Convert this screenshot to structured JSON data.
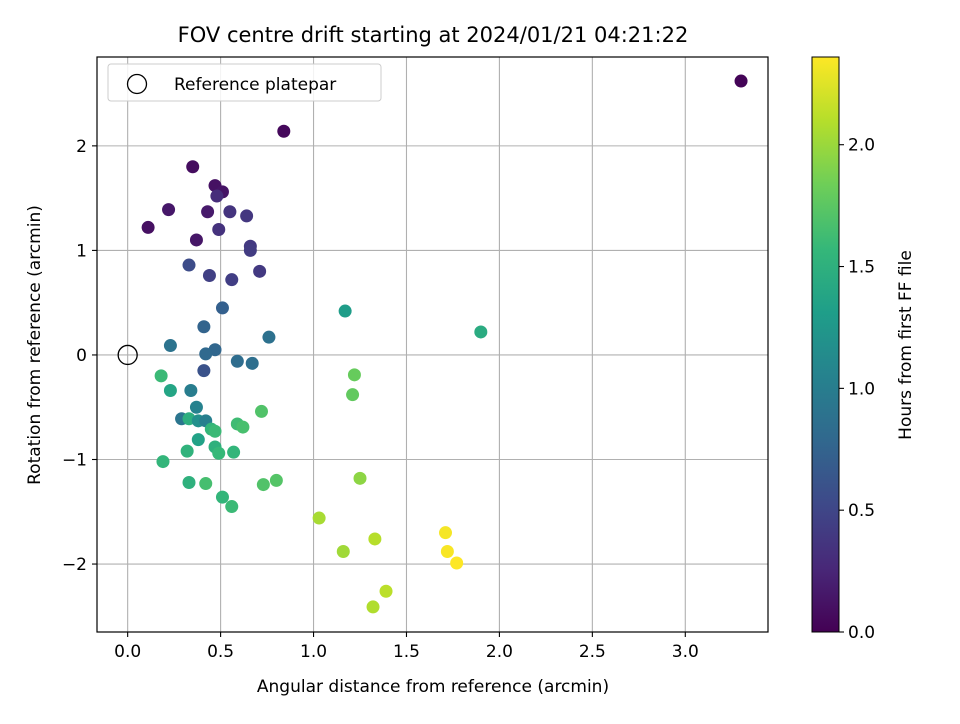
{
  "chart_data": {
    "type": "scatter",
    "title": "FOV centre drift starting at 2024/01/21 04:21:22",
    "xlabel": "Angular distance from reference (arcmin)",
    "ylabel": "Rotation from reference (arcmin)",
    "xlim": [
      -0.165,
      3.445
    ],
    "ylim": [
      -2.65,
      2.85
    ],
    "x_ticks": [
      0.0,
      0.5,
      1.0,
      1.5,
      2.0,
      2.5,
      3.0
    ],
    "x_tick_labels": [
      "0.0",
      "0.5",
      "1.0",
      "1.5",
      "2.0",
      "2.5",
      "3.0"
    ],
    "y_ticks": [
      -2,
      -1,
      0,
      1,
      2
    ],
    "y_tick_labels": [
      "−2",
      "−1",
      "0",
      "1",
      "2"
    ],
    "grid": true,
    "legend": {
      "placement": "top-left",
      "entries": [
        {
          "label": "Reference platepar",
          "marker": "open-circle"
        }
      ]
    },
    "reference_point": {
      "x": 0.0,
      "y": 0.0
    },
    "colorbar": {
      "label": "Hours from first FF file",
      "colormap": "viridis",
      "range": [
        0.0,
        2.36
      ],
      "ticks": [
        0.0,
        0.5,
        1.0,
        1.5,
        2.0
      ],
      "tick_labels": [
        "0.0",
        "0.5",
        "1.0",
        "1.5",
        "2.0"
      ],
      "colormap_stops": [
        "#440154",
        "#482878",
        "#3e4989",
        "#31688e",
        "#26828e",
        "#1f9e89",
        "#35b779",
        "#6ece58",
        "#b5de2b",
        "#fde725"
      ]
    },
    "points": [
      {
        "x": 3.3,
        "y": 2.62,
        "c": 0.02
      },
      {
        "x": 0.84,
        "y": 2.14,
        "c": 0.05
      },
      {
        "x": 0.35,
        "y": 1.8,
        "c": 0.08
      },
      {
        "x": 0.47,
        "y": 1.62,
        "c": 0.11
      },
      {
        "x": 0.51,
        "y": 1.56,
        "c": 0.13
      },
      {
        "x": 0.22,
        "y": 1.39,
        "c": 0.15
      },
      {
        "x": 0.43,
        "y": 1.37,
        "c": 0.17
      },
      {
        "x": 0.11,
        "y": 1.22,
        "c": 0.1
      },
      {
        "x": 0.37,
        "y": 1.1,
        "c": 0.14
      },
      {
        "x": 0.48,
        "y": 1.52,
        "c": 0.3
      },
      {
        "x": 0.55,
        "y": 1.37,
        "c": 0.36
      },
      {
        "x": 0.64,
        "y": 1.33,
        "c": 0.38
      },
      {
        "x": 0.49,
        "y": 1.2,
        "c": 0.34
      },
      {
        "x": 0.66,
        "y": 1.04,
        "c": 0.4
      },
      {
        "x": 0.66,
        "y": 1.0,
        "c": 0.42
      },
      {
        "x": 0.33,
        "y": 0.86,
        "c": 0.55
      },
      {
        "x": 0.44,
        "y": 0.76,
        "c": 0.45
      },
      {
        "x": 0.56,
        "y": 0.72,
        "c": 0.44
      },
      {
        "x": 0.71,
        "y": 0.8,
        "c": 0.4
      },
      {
        "x": 0.51,
        "y": 0.45,
        "c": 0.72
      },
      {
        "x": 0.41,
        "y": 0.27,
        "c": 0.75
      },
      {
        "x": 1.17,
        "y": 0.42,
        "c": 1.3
      },
      {
        "x": 1.9,
        "y": 0.22,
        "c": 1.45
      },
      {
        "x": 0.76,
        "y": 0.17,
        "c": 0.88
      },
      {
        "x": 0.23,
        "y": 0.09,
        "c": 0.9
      },
      {
        "x": 0.47,
        "y": 0.05,
        "c": 0.78
      },
      {
        "x": 0.42,
        "y": 0.01,
        "c": 0.8
      },
      {
        "x": 0.59,
        "y": -0.06,
        "c": 0.84
      },
      {
        "x": 0.67,
        "y": -0.08,
        "c": 0.86
      },
      {
        "x": 0.41,
        "y": -0.15,
        "c": 0.6
      },
      {
        "x": 0.18,
        "y": -0.2,
        "c": 1.6
      },
      {
        "x": 1.22,
        "y": -0.19,
        "c": 1.8
      },
      {
        "x": 0.23,
        "y": -0.34,
        "c": 1.38
      },
      {
        "x": 0.34,
        "y": -0.34,
        "c": 1.0
      },
      {
        "x": 1.21,
        "y": -0.38,
        "c": 1.78
      },
      {
        "x": 0.37,
        "y": -0.5,
        "c": 1.05
      },
      {
        "x": 0.72,
        "y": -0.54,
        "c": 1.7
      },
      {
        "x": 0.29,
        "y": -0.61,
        "c": 0.92
      },
      {
        "x": 0.33,
        "y": -0.61,
        "c": 1.48
      },
      {
        "x": 0.38,
        "y": -0.63,
        "c": 1.18
      },
      {
        "x": 0.42,
        "y": -0.63,
        "c": 1.02
      },
      {
        "x": 0.59,
        "y": -0.66,
        "c": 1.62
      },
      {
        "x": 0.62,
        "y": -0.69,
        "c": 1.66
      },
      {
        "x": 0.45,
        "y": -0.71,
        "c": 1.55
      },
      {
        "x": 0.47,
        "y": -0.73,
        "c": 1.6
      },
      {
        "x": 0.38,
        "y": -0.81,
        "c": 1.35
      },
      {
        "x": 0.47,
        "y": -0.88,
        "c": 1.5
      },
      {
        "x": 0.32,
        "y": -0.92,
        "c": 1.52
      },
      {
        "x": 0.49,
        "y": -0.94,
        "c": 1.58
      },
      {
        "x": 0.57,
        "y": -0.93,
        "c": 1.55
      },
      {
        "x": 0.19,
        "y": -1.02,
        "c": 1.55
      },
      {
        "x": 1.25,
        "y": -1.18,
        "c": 1.95
      },
      {
        "x": 0.33,
        "y": -1.22,
        "c": 1.5
      },
      {
        "x": 0.42,
        "y": -1.23,
        "c": 1.65
      },
      {
        "x": 0.73,
        "y": -1.24,
        "c": 1.7
      },
      {
        "x": 0.8,
        "y": -1.2,
        "c": 1.72
      },
      {
        "x": 0.51,
        "y": -1.36,
        "c": 1.55
      },
      {
        "x": 0.56,
        "y": -1.45,
        "c": 1.6
      },
      {
        "x": 1.03,
        "y": -1.56,
        "c": 2.05
      },
      {
        "x": 1.71,
        "y": -1.7,
        "c": 2.33
      },
      {
        "x": 1.33,
        "y": -1.76,
        "c": 2.1
      },
      {
        "x": 1.72,
        "y": -1.88,
        "c": 2.34
      },
      {
        "x": 1.16,
        "y": -1.88,
        "c": 2.02
      },
      {
        "x": 1.77,
        "y": -1.99,
        "c": 2.36
      },
      {
        "x": 1.39,
        "y": -2.26,
        "c": 2.12
      },
      {
        "x": 1.32,
        "y": -2.41,
        "c": 2.08
      }
    ]
  }
}
